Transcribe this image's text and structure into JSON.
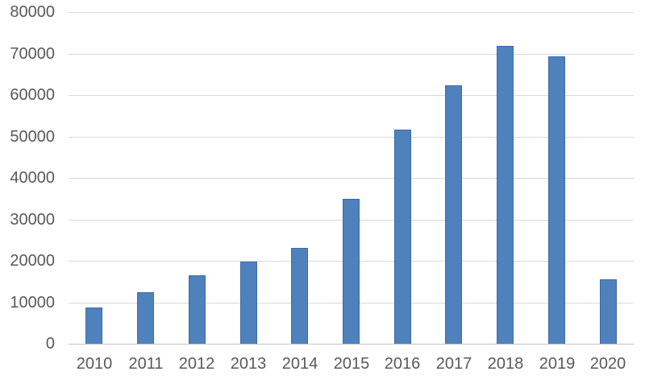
{
  "colors": {
    "background": "#ffffff",
    "bar": "#4f81bd",
    "bar_border": "#3c6ba5",
    "gridline": "#d9d9d9",
    "axis_line": "#c3c3c3",
    "tick_label": "#595959"
  },
  "chart_data": {
    "type": "bar",
    "title": "",
    "xlabel": "",
    "ylabel": "",
    "categories": [
      "2010",
      "2011",
      "2012",
      "2013",
      "2014",
      "2015",
      "2016",
      "2017",
      "2018",
      "2019",
      "2020"
    ],
    "values": [
      8800,
      12400,
      16500,
      19800,
      23200,
      35000,
      51600,
      62400,
      71800,
      69400,
      15500
    ],
    "ylim": [
      0,
      80000
    ],
    "ytick_step": 10000,
    "ytick_labels": [
      "0",
      "10000",
      "20000",
      "30000",
      "40000",
      "50000",
      "60000",
      "70000",
      "80000"
    ],
    "grid": "horizontal",
    "legend": "none",
    "bar_color": "#4f81bd"
  }
}
